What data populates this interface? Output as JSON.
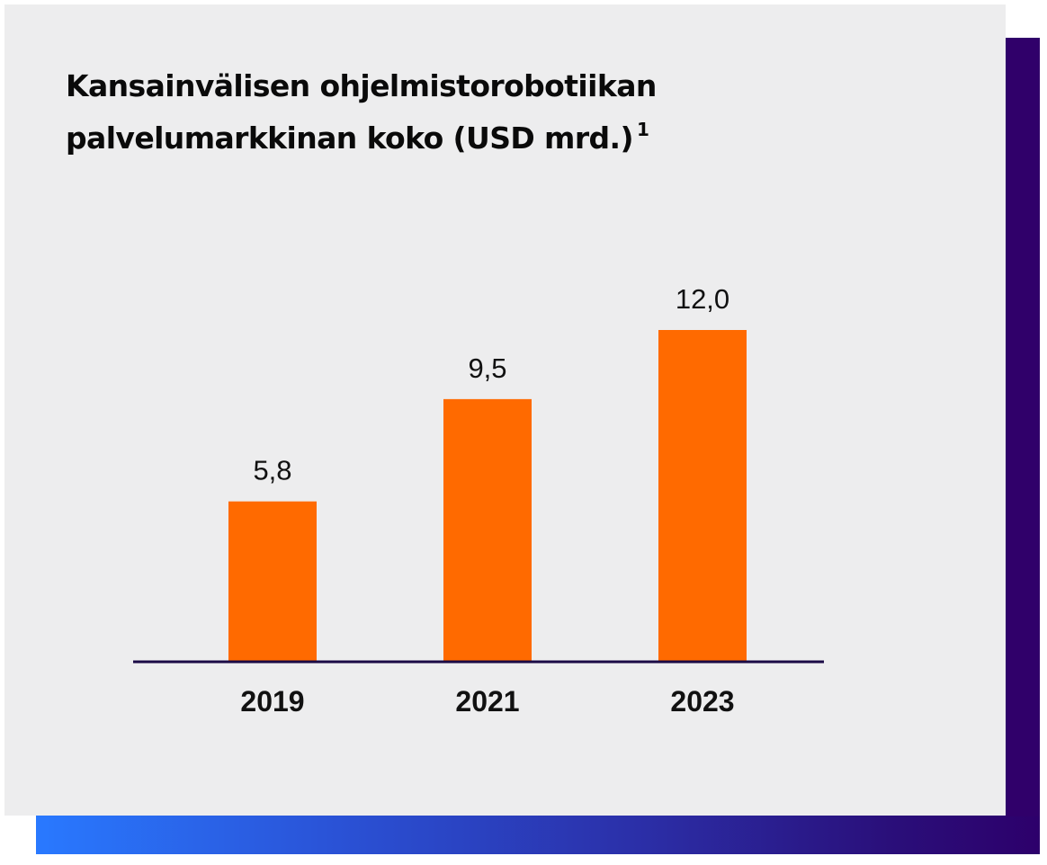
{
  "colors": {
    "bar": "#ff6a00",
    "axis": "#1a0a45",
    "card_background": "#ededee",
    "gradient_start": "#2979ff",
    "gradient_end": "#2d006b"
  },
  "chart_data": {
    "type": "bar",
    "title": "Kansainvälisen ohjelmistorobotiikan palvelumarkkinan koko (USD mrd.)",
    "title_line1": "Kansainvälisen ohjelmistorobotiikan",
    "title_line2": "palvelumarkkinan koko (USD mrd.)",
    "footnote_marker": "1",
    "categories": [
      "2019",
      "2021",
      "2023"
    ],
    "values": [
      5.8,
      9.5,
      12.0
    ],
    "value_labels": [
      "5,8",
      "9,5",
      "12,0"
    ],
    "xlabel": "",
    "ylabel": "",
    "ylim": [
      0,
      15
    ],
    "grid": false,
    "legend": "none"
  }
}
